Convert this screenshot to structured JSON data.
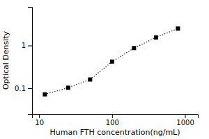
{
  "chart_data": {
    "type": "line",
    "x": [
      12,
      25,
      50,
      100,
      200,
      400,
      800
    ],
    "values": [
      0.072,
      0.103,
      0.16,
      0.42,
      0.87,
      1.55,
      2.5
    ],
    "xlabel": "Human FTH concentration(ng/mL)",
    "ylabel": "Optical Density",
    "xlim": [
      8,
      1500
    ],
    "ylim": [
      0.025,
      8
    ],
    "xticks": [
      10,
      100,
      1000
    ],
    "yticks": [
      0.1,
      1
    ],
    "log": true,
    "grid": false,
    "color": "black",
    "marker": "square",
    "line_style": "dotted"
  }
}
